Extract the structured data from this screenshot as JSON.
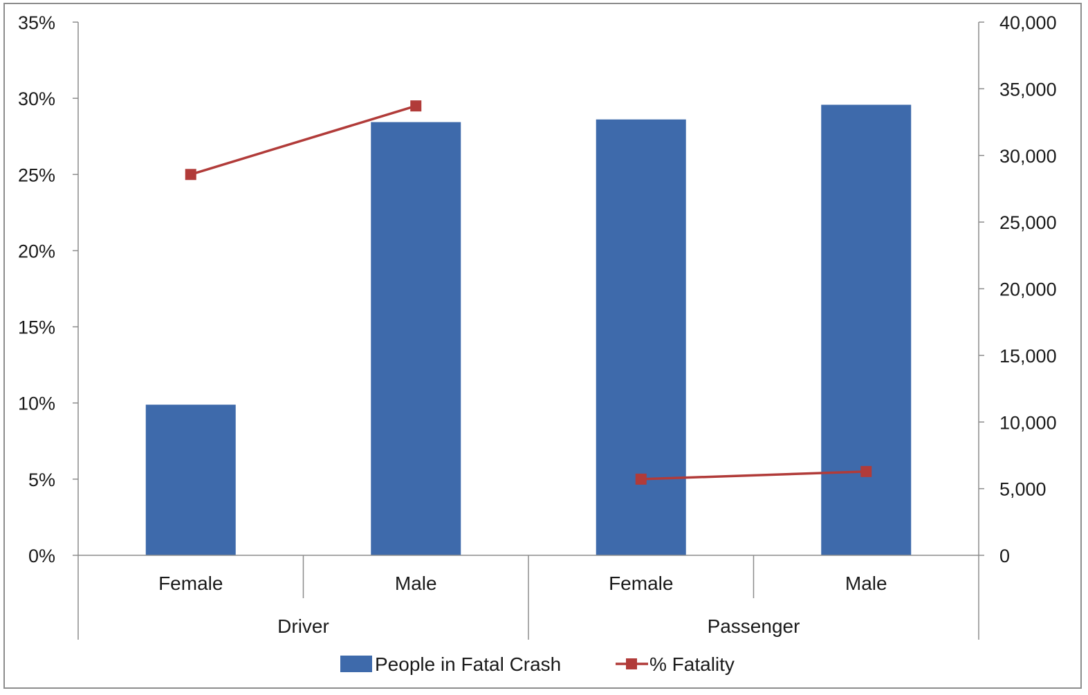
{
  "chart_data": {
    "type": "bar",
    "groups": [
      {
        "label": "Driver",
        "categories": [
          "Female",
          "Male"
        ]
      },
      {
        "label": "Passenger",
        "categories": [
          "Female",
          "Male"
        ]
      }
    ],
    "categories": [
      "Female",
      "Male",
      "Female",
      "Male"
    ],
    "series": [
      {
        "name": "People in Fatal Crash",
        "type": "bar",
        "axis": "right",
        "color": "#3e6aab",
        "values": [
          11300,
          32500,
          32700,
          33800
        ]
      },
      {
        "name": "% Fatality",
        "type": "line",
        "axis": "left",
        "color": "#b13b39",
        "marker": "square",
        "segments": [
          [
            0,
            1
          ],
          [
            2,
            3
          ]
        ],
        "values": [
          0.25,
          0.295,
          0.05,
          0.055
        ]
      }
    ],
    "y_left": {
      "ylim": [
        0,
        0.35
      ],
      "ticks": [
        0,
        0.05,
        0.1,
        0.15,
        0.2,
        0.25,
        0.3,
        0.35
      ],
      "tick_labels": [
        "0%",
        "5%",
        "10%",
        "15%",
        "20%",
        "25%",
        "30%",
        "35%"
      ]
    },
    "y_right": {
      "ylim": [
        0,
        40000
      ],
      "ticks": [
        0,
        5000,
        10000,
        15000,
        20000,
        25000,
        30000,
        35000,
        40000
      ],
      "tick_labels": [
        "0",
        "5,000",
        "10,000",
        "15,000",
        "20,000",
        "25,000",
        "30,000",
        "35,000",
        "40,000"
      ]
    },
    "grid": false,
    "legend": {
      "position": "bottom",
      "entries": [
        "People in Fatal Crash",
        "% Fatality"
      ]
    }
  }
}
